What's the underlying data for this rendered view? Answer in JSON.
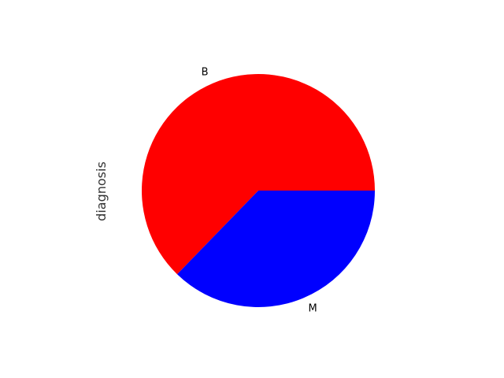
{
  "chart_data": {
    "type": "pie",
    "title": "",
    "ylabel": "diagnosis",
    "slices": [
      {
        "label": "B",
        "value": 357,
        "color": "#ff0000"
      },
      {
        "label": "M",
        "value": 212,
        "color": "#0000ff"
      }
    ],
    "start_angle_deg": 0,
    "direction": "counterclockwise",
    "legend": "none"
  }
}
